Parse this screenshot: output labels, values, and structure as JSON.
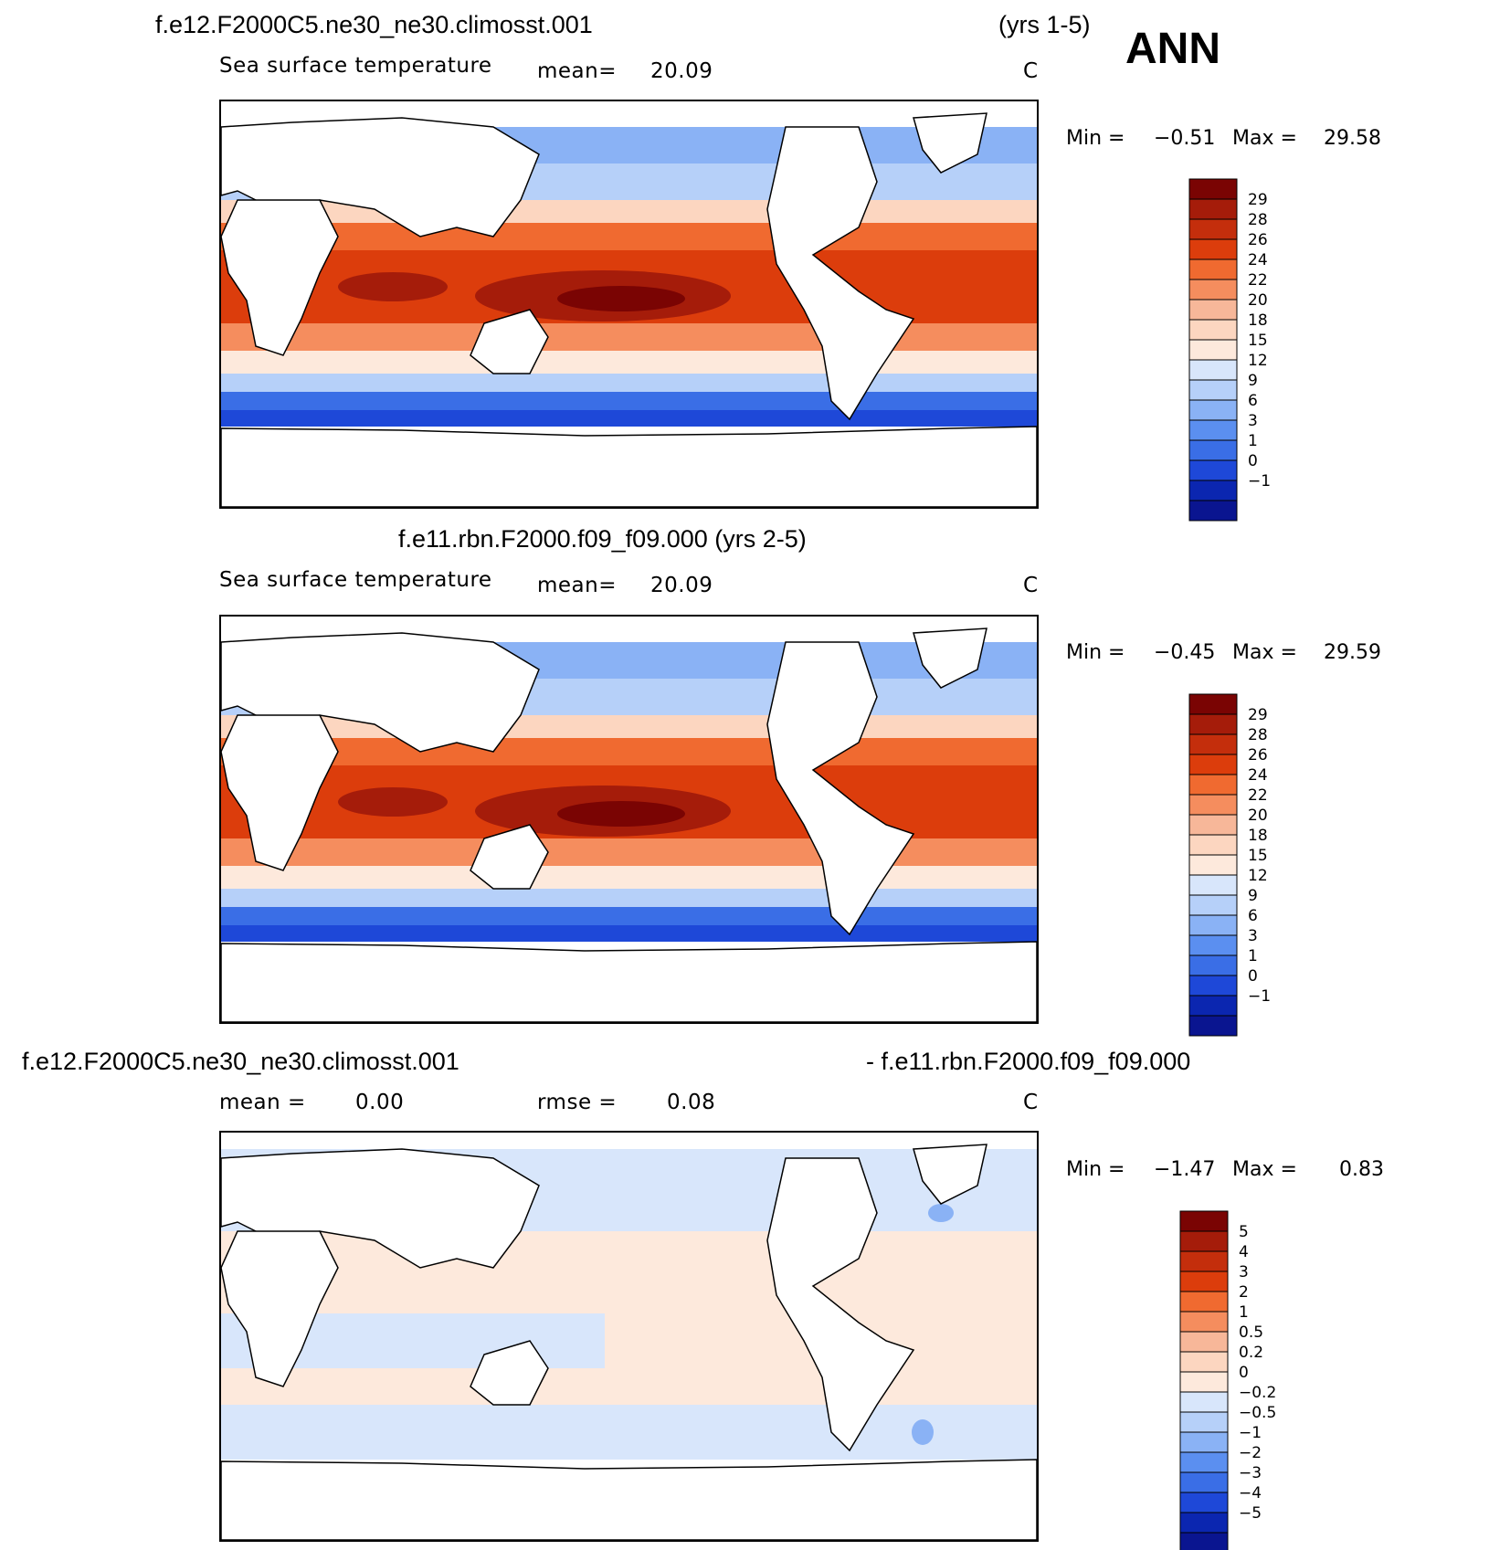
{
  "header": {
    "ann": "ANN",
    "panel1_title": "f.e12.F2000C5.ne30_ne30.climosst.001",
    "panel1_years": "(yrs 1-5)",
    "panel2_title": "f.e11.rbn.F2000.f09_f09.000 (yrs 2-5)",
    "panel3_title_left": "f.e12.F2000C5.ne30_ne30.climosst.001",
    "panel3_title_right": "- f.e11.rbn.F2000.f09_f09.000"
  },
  "panels": [
    {
      "variable": "Sea surface temperature",
      "mean_label": "mean=",
      "mean_value": "20.09",
      "units": "C",
      "min_label": "Min =",
      "min_value": "−0.51",
      "max_label": "Max =",
      "max_value": "29.58",
      "colorbar_labels": [
        "29",
        "28",
        "26",
        "24",
        "22",
        "20",
        "18",
        "15",
        "12",
        "9",
        "6",
        "3",
        "1",
        "0",
        "−1"
      ]
    },
    {
      "variable": "Sea surface temperature",
      "mean_label": "mean=",
      "mean_value": "20.09",
      "units": "C",
      "min_label": "Min =",
      "min_value": "−0.45",
      "max_label": "Max =",
      "max_value": "29.59",
      "colorbar_labels": [
        "29",
        "28",
        "26",
        "24",
        "22",
        "20",
        "18",
        "15",
        "12",
        "9",
        "6",
        "3",
        "1",
        "0",
        "−1"
      ]
    },
    {
      "mean_label": "mean =",
      "mean_value": "0.00",
      "rmse_label": "rmse =",
      "rmse_value": "0.08",
      "units": "C",
      "min_label": "Min =",
      "min_value": "−1.47",
      "max_label": "Max =",
      "max_value": "0.83",
      "colorbar_labels": [
        "5",
        "4",
        "3",
        "2",
        "1",
        "0.5",
        "0.2",
        "0",
        "−0.2",
        "−0.5",
        "−1",
        "−2",
        "−3",
        "−4",
        "−5"
      ]
    }
  ],
  "colors": {
    "palette_16": [
      "#7a0403",
      "#a51c0a",
      "#c42e0c",
      "#dc3d0c",
      "#f06a30",
      "#f58d5e",
      "#f7b799",
      "#fcd6c0",
      "#fde9dc",
      "#d8e6fb",
      "#b6d0f9",
      "#8ab2f5",
      "#5b8ff0",
      "#3a6ee6",
      "#1e48d8",
      "#0b26b0",
      "#0a1590"
    ]
  },
  "chart_data": {
    "type": "heatmap",
    "panels": [
      {
        "title": "f.e12.F2000C5.ne30_ne30.climosst.001 (yrs 1-5)",
        "variable": "Sea surface temperature",
        "units": "C",
        "mean": 20.09,
        "min": -0.51,
        "max": 29.58,
        "levels": [
          -1,
          0,
          1,
          3,
          6,
          9,
          12,
          15,
          18,
          20,
          22,
          24,
          26,
          28,
          29
        ]
      },
      {
        "title": "f.e11.rbn.F2000.f09_f09.000 (yrs 2-5)",
        "variable": "Sea surface temperature",
        "units": "C",
        "mean": 20.09,
        "min": -0.45,
        "max": 29.59,
        "levels": [
          -1,
          0,
          1,
          3,
          6,
          9,
          12,
          15,
          18,
          20,
          22,
          24,
          26,
          28,
          29
        ]
      },
      {
        "title": "f.e12.F2000C5.ne30_ne30.climosst.001 - f.e11.rbn.F2000.f09_f09.000",
        "units": "C",
        "mean": 0.0,
        "rmse": 0.08,
        "min": -1.47,
        "max": 0.83,
        "levels": [
          -5,
          -4,
          -3,
          -2,
          -1,
          -0.5,
          -0.2,
          0,
          0.2,
          0.5,
          1,
          2,
          3,
          4,
          5
        ]
      }
    ]
  }
}
